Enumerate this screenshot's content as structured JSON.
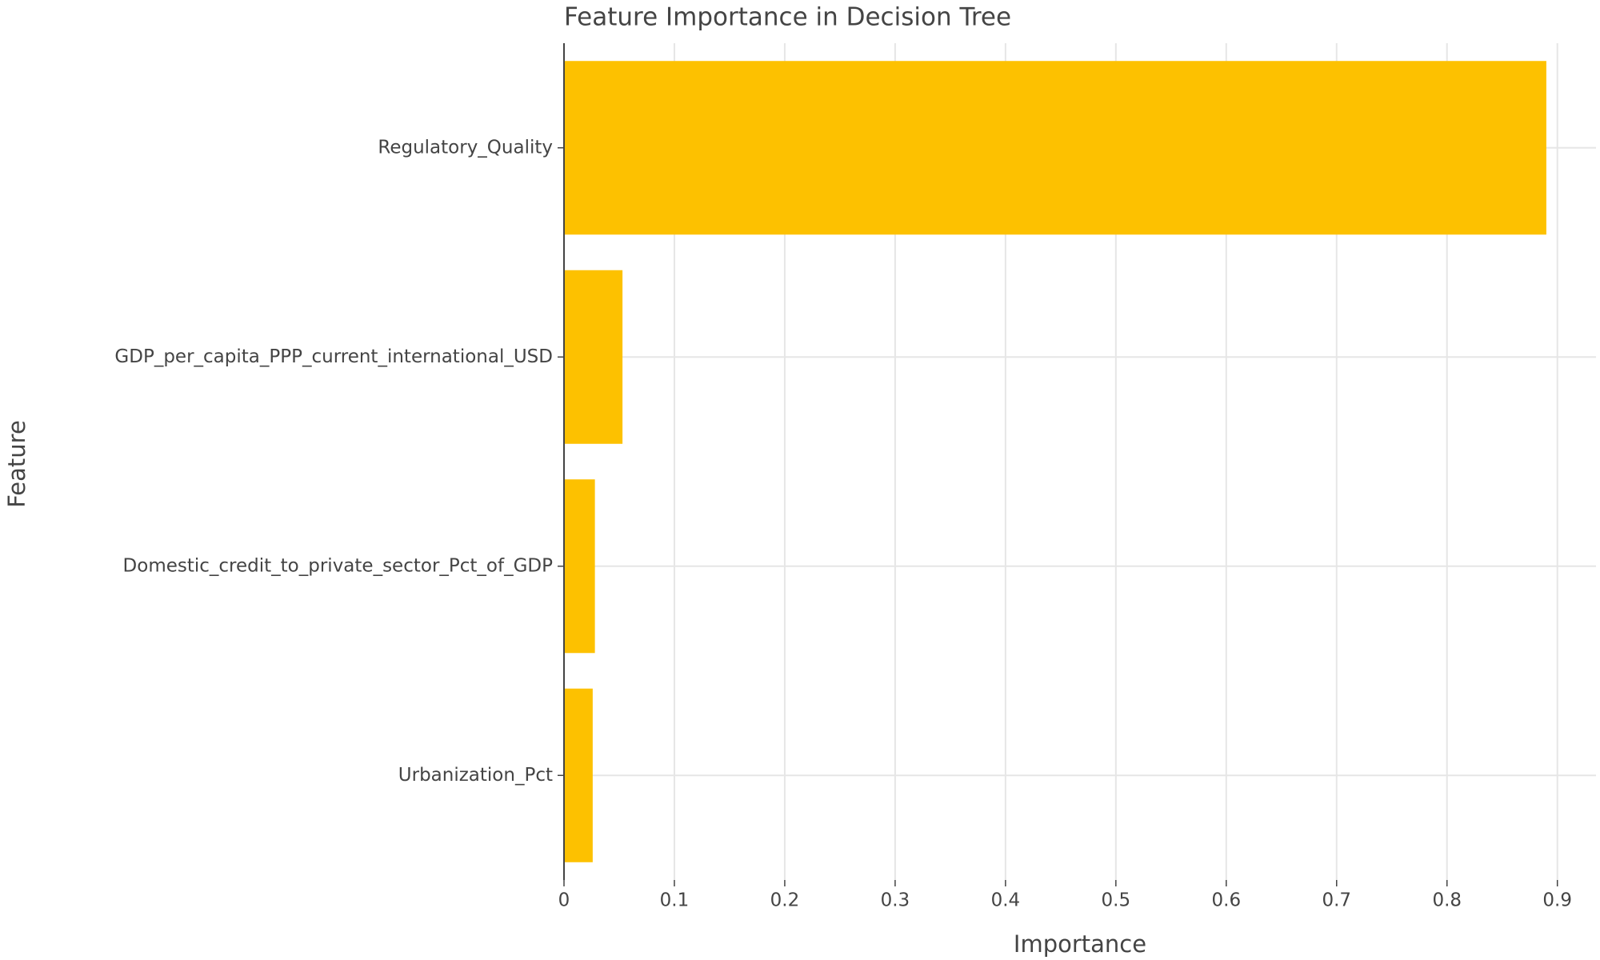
{
  "chart_data": {
    "type": "bar",
    "orientation": "horizontal",
    "title": "Feature Importance in Decision Tree",
    "x_label": "Importance",
    "y_label": "Feature",
    "categories": [
      "Regulatory_Quality",
      "GDP_per_capita_PPP_current_international_USD",
      "Domestic_credit_to_private_sector_Pct_of_GDP",
      "Urbanization_Pct"
    ],
    "values": [
      0.89,
      0.053,
      0.028,
      0.026
    ],
    "color": "#fdc100",
    "xlim": [
      0,
      0.935
    ],
    "xticks": [
      0,
      0.1,
      0.2,
      0.3,
      0.4,
      0.5,
      0.6,
      0.7,
      0.8,
      0.9
    ],
    "grid": true
  }
}
